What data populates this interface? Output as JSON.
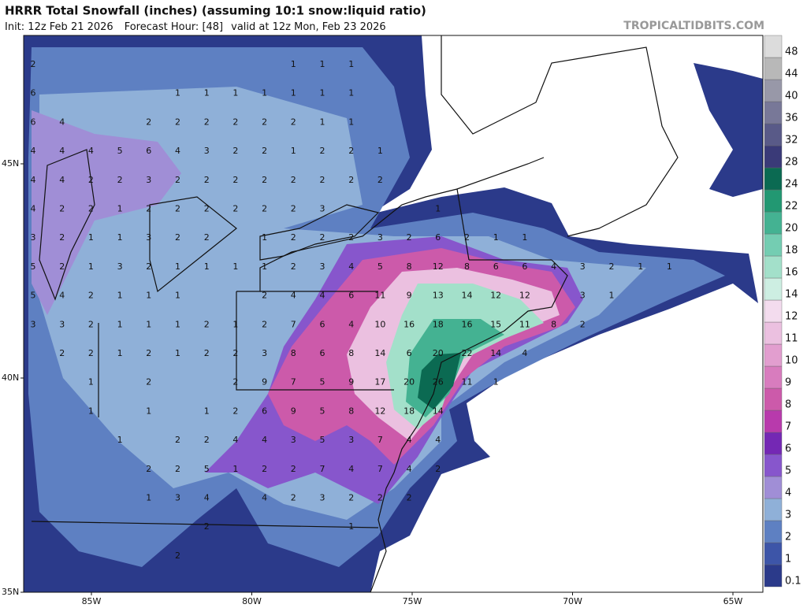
{
  "header": {
    "title": "HRRR Total Snowfall (inches) (assuming 10:1 snow:liquid ratio)",
    "init": "Init: 12z Feb 21 2026",
    "forecast_hour": "Forecast Hour: [48]",
    "valid": "valid at 12z Mon, Feb 23 2026",
    "site": "TROPICALTIDBITS.COM"
  },
  "map": {
    "lat_labels": [
      "45N",
      "40N",
      "35N"
    ],
    "lon_labels": [
      "85W",
      "80W",
      "75W",
      "70W",
      "65W"
    ],
    "grid": [
      [
        2,
        null,
        null,
        null,
        null,
        null,
        null,
        null,
        null,
        1,
        1,
        1,
        null,
        null,
        null,
        null,
        null,
        null,
        null,
        null,
        null,
        null,
        null
      ],
      [
        6,
        null,
        null,
        null,
        null,
        1,
        1,
        1,
        1,
        1,
        1,
        1,
        null,
        null,
        null,
        null,
        null,
        null,
        null,
        null,
        null,
        null,
        null
      ],
      [
        6,
        4,
        null,
        null,
        2,
        2,
        2,
        2,
        2,
        2,
        1,
        1,
        null,
        null,
        null,
        null,
        null,
        null,
        null,
        null,
        null,
        null,
        null
      ],
      [
        4,
        4,
        4,
        5,
        6,
        4,
        3,
        2,
        2,
        1,
        2,
        2,
        1,
        null,
        null,
        null,
        null,
        null,
        null,
        null,
        null,
        null,
        null
      ],
      [
        4,
        4,
        2,
        2,
        3,
        2,
        2,
        2,
        2,
        2,
        2,
        2,
        2,
        null,
        null,
        null,
        null,
        null,
        null,
        null,
        null,
        null,
        null
      ],
      [
        4,
        2,
        2,
        1,
        2,
        2,
        2,
        2,
        2,
        2,
        3,
        null,
        null,
        null,
        1,
        null,
        null,
        null,
        null,
        null,
        null,
        null,
        null
      ],
      [
        3,
        2,
        1,
        1,
        3,
        2,
        2,
        null,
        1,
        2,
        2,
        2,
        3,
        2,
        6,
        2,
        1,
        1,
        null,
        null,
        null,
        null,
        null
      ],
      [
        5,
        2,
        1,
        3,
        2,
        1,
        1,
        1,
        1,
        2,
        3,
        4,
        5,
        8,
        12,
        8,
        6,
        6,
        4,
        3,
        2,
        1,
        1
      ],
      [
        5,
        4,
        2,
        1,
        1,
        1,
        null,
        null,
        2,
        4,
        4,
        6,
        11,
        9,
        13,
        14,
        12,
        12,
        null,
        3,
        1,
        null,
        null
      ],
      [
        3,
        3,
        2,
        1,
        1,
        1,
        2,
        1,
        2,
        7,
        6,
        4,
        10,
        16,
        18,
        16,
        15,
        11,
        8,
        2,
        null,
        null,
        null
      ],
      [
        null,
        2,
        2,
        1,
        2,
        1,
        2,
        2,
        3,
        8,
        6,
        8,
        14,
        6,
        20,
        22,
        14,
        4,
        null,
        null,
        null,
        null,
        null
      ],
      [
        null,
        null,
        1,
        null,
        2,
        null,
        null,
        2,
        9,
        7,
        5,
        9,
        17,
        20,
        26,
        11,
        1,
        null,
        null,
        null,
        null,
        null,
        null
      ],
      [
        null,
        null,
        1,
        null,
        1,
        null,
        1,
        2,
        6,
        9,
        5,
        8,
        12,
        18,
        14,
        null,
        null,
        null,
        null,
        null,
        null,
        null,
        null
      ],
      [
        null,
        null,
        null,
        1,
        null,
        2,
        2,
        4,
        4,
        3,
        5,
        3,
        7,
        4,
        4,
        null,
        null,
        null,
        null,
        null,
        null,
        null,
        null
      ],
      [
        null,
        null,
        null,
        null,
        2,
        2,
        5,
        1,
        2,
        2,
        7,
        4,
        7,
        4,
        2,
        null,
        null,
        null,
        null,
        null,
        null,
        null,
        null
      ],
      [
        null,
        null,
        null,
        null,
        1,
        3,
        4,
        null,
        4,
        2,
        3,
        2,
        2,
        2,
        null,
        null,
        null,
        null,
        null,
        null,
        null,
        null,
        null
      ],
      [
        null,
        null,
        null,
        null,
        null,
        null,
        2,
        null,
        null,
        null,
        null,
        1,
        null,
        null,
        null,
        null,
        null,
        null,
        null,
        null,
        null,
        null,
        null
      ],
      [
        null,
        null,
        null,
        null,
        null,
        2,
        null,
        null,
        null,
        null,
        null,
        null,
        null,
        null,
        null,
        null,
        null,
        null,
        null,
        null,
        null,
        null,
        null
      ]
    ]
  },
  "colorbar": {
    "levels": [
      0.1,
      1,
      2,
      3,
      4,
      5,
      6,
      7,
      8,
      9,
      10,
      11,
      12,
      14,
      16,
      18,
      20,
      22,
      24,
      28,
      32,
      36,
      40,
      44,
      48
    ],
    "colors": [
      "#2b3a8a",
      "#3d55a8",
      "#5e80c2",
      "#8fb0d8",
      "#a08ed6",
      "#8756cc",
      "#7428b4",
      "#b83aac",
      "#cc5aaa",
      "#d87cbe",
      "#e29ecf",
      "#ebc0e0",
      "#f3dcee",
      "#cdeee2",
      "#a3e0ca",
      "#74cdb2",
      "#44b292",
      "#229872",
      "#0b6a52",
      "#3a3a78",
      "#595a88",
      "#787898",
      "#9898a8",
      "#b8b8b8",
      "#dcdcdc"
    ]
  }
}
